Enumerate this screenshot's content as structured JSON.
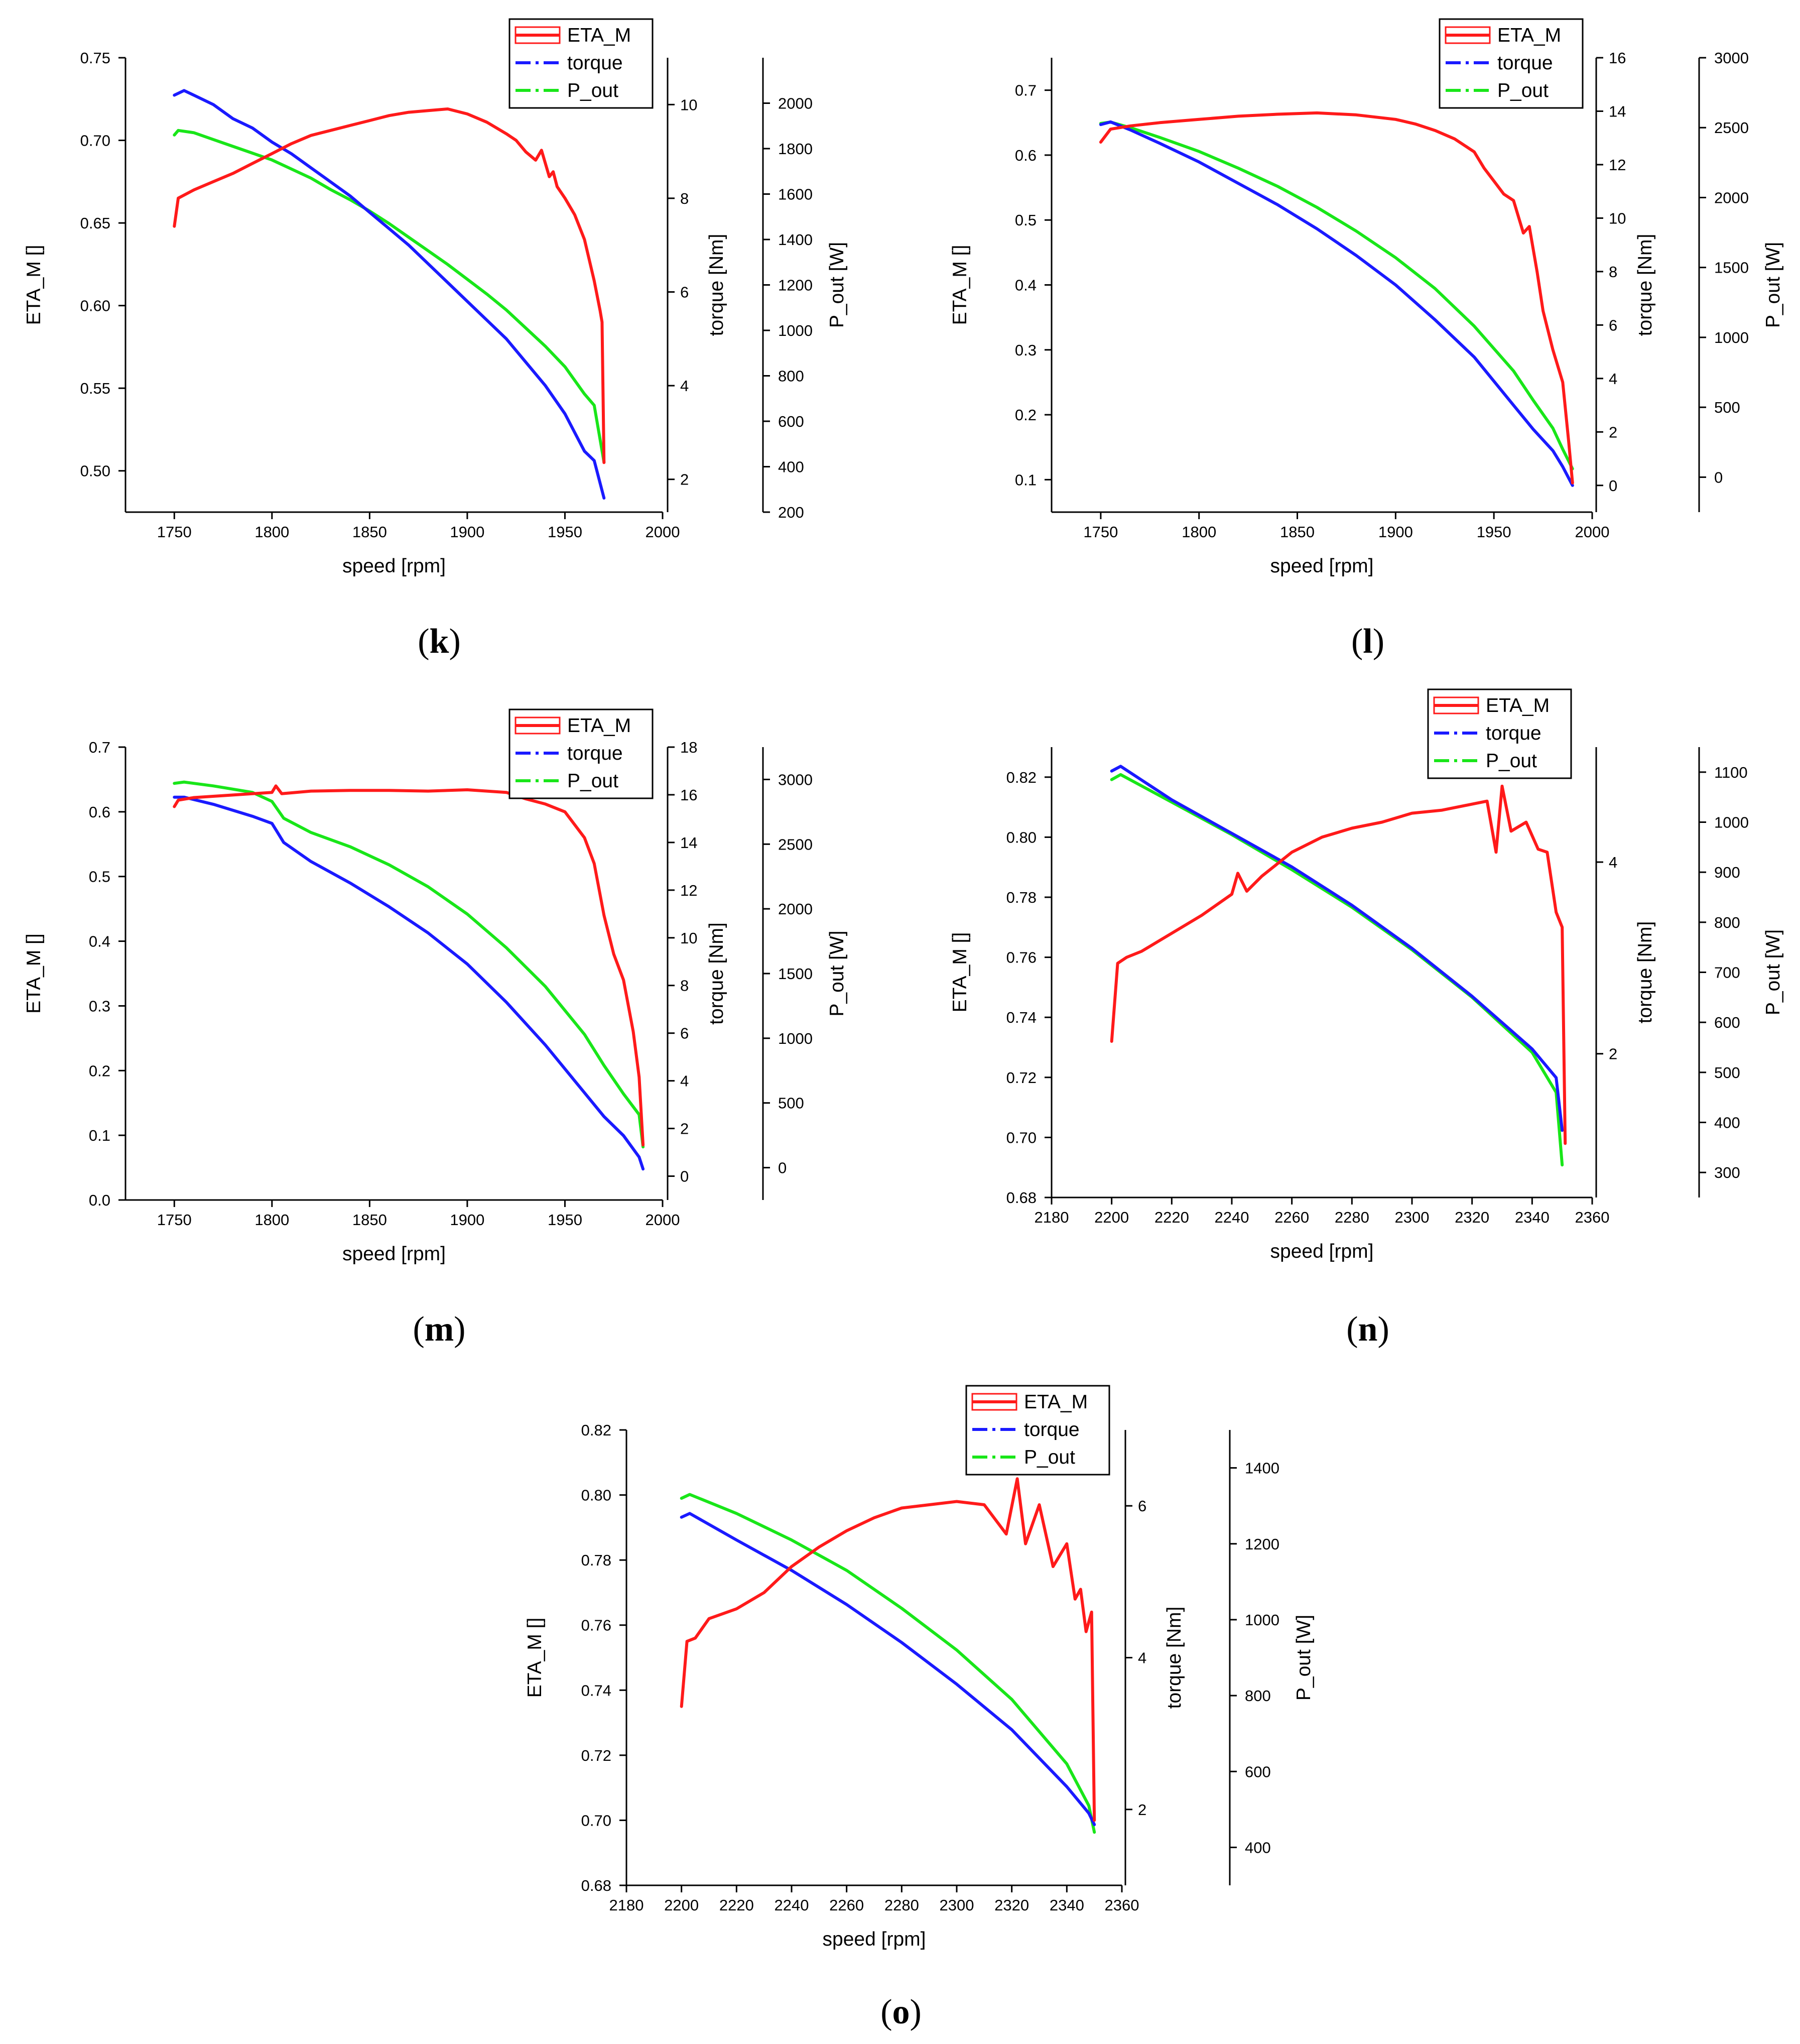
{
  "figure": {
    "colors": {
      "eta": "#ff1a1a",
      "torque": "#1a1aff",
      "p_out": "#19e619",
      "axis": "#000000"
    }
  },
  "chart_data": [
    {
      "panel": "k",
      "type": "line",
      "caption": "(k)",
      "xlabel": "speed [rpm]",
      "xlim": [
        1725,
        2000
      ],
      "xticks": [
        1750,
        1800,
        1850,
        1900,
        1950,
        2000
      ],
      "axes": {
        "eta": {
          "label": "ETA_M []",
          "lim": [
            0.475,
            0.75
          ],
          "ticks": [
            0.5,
            0.55,
            0.6,
            0.65,
            0.7,
            0.75
          ],
          "decimals": 2
        },
        "torque": {
          "label": "torque [Nm]",
          "lim": [
            1.3,
            11
          ],
          "ticks": [
            2,
            4,
            6,
            8,
            10
          ],
          "decimals": 0
        },
        "p_out": {
          "label": "P_out [W]",
          "lim": [
            200,
            2200
          ],
          "ticks": [
            200,
            400,
            600,
            800,
            1000,
            1200,
            1400,
            1600,
            1800,
            2000
          ],
          "decimals": 0
        }
      },
      "legend": [
        "ETA_M",
        "torque",
        "P_out"
      ],
      "series": [
        {
          "name": "ETA_M",
          "axis": "eta",
          "x": [
            1750,
            1752,
            1760,
            1770,
            1780,
            1790,
            1800,
            1810,
            1820,
            1830,
            1840,
            1850,
            1860,
            1870,
            1880,
            1890,
            1900,
            1910,
            1920,
            1925,
            1930,
            1935,
            1938,
            1942,
            1944,
            1946,
            1950,
            1955,
            1960,
            1965,
            1968,
            1969,
            1970
          ],
          "y": [
            0.648,
            0.665,
            0.67,
            0.675,
            0.68,
            0.686,
            0.692,
            0.698,
            0.703,
            0.706,
            0.709,
            0.712,
            0.715,
            0.717,
            0.718,
            0.719,
            0.716,
            0.711,
            0.704,
            0.7,
            0.693,
            0.688,
            0.694,
            0.678,
            0.681,
            0.672,
            0.665,
            0.655,
            0.64,
            0.615,
            0.597,
            0.59,
            0.505
          ]
        },
        {
          "name": "torque",
          "axis": "torque",
          "x": [
            1750,
            1755,
            1760,
            1770,
            1780,
            1790,
            1800,
            1810,
            1820,
            1830,
            1840,
            1850,
            1860,
            1870,
            1880,
            1890,
            1900,
            1910,
            1920,
            1930,
            1940,
            1950,
            1955,
            1960,
            1965,
            1970
          ],
          "y": [
            10.2,
            10.3,
            10.2,
            10.0,
            9.7,
            9.5,
            9.2,
            8.95,
            8.65,
            8.35,
            8.05,
            7.7,
            7.35,
            7.0,
            6.6,
            6.2,
            5.8,
            5.4,
            5.0,
            4.5,
            4.0,
            3.4,
            3.0,
            2.6,
            2.4,
            1.6
          ]
        },
        {
          "name": "P_out",
          "axis": "p_out",
          "x": [
            1750,
            1752,
            1760,
            1770,
            1780,
            1790,
            1800,
            1810,
            1820,
            1830,
            1840,
            1850,
            1860,
            1870,
            1880,
            1890,
            1900,
            1910,
            1920,
            1930,
            1940,
            1950,
            1955,
            1960,
            1965,
            1970
          ],
          "y": [
            1860,
            1880,
            1870,
            1840,
            1810,
            1780,
            1750,
            1710,
            1670,
            1620,
            1575,
            1525,
            1470,
            1410,
            1350,
            1290,
            1225,
            1160,
            1090,
            1010,
            930,
            840,
            780,
            720,
            670,
            420
          ]
        }
      ]
    },
    {
      "panel": "l",
      "type": "line",
      "caption": "(l)",
      "xlabel": "speed [rpm]",
      "xlim": [
        1725,
        2000
      ],
      "xticks": [
        1750,
        1800,
        1850,
        1900,
        1950,
        2000
      ],
      "axes": {
        "eta": {
          "label": "ETA_M []",
          "lim": [
            0.05,
            0.75
          ],
          "ticks": [
            0.1,
            0.2,
            0.3,
            0.4,
            0.5,
            0.6,
            0.7
          ],
          "decimals": 1
        },
        "torque": {
          "label": "torque [Nm]",
          "lim": [
            -1,
            16
          ],
          "ticks": [
            0,
            2,
            4,
            6,
            8,
            10,
            12,
            14,
            16
          ],
          "decimals": 0
        },
        "p_out": {
          "label": "P_out [W]",
          "lim": [
            -250,
            3000
          ],
          "ticks": [
            0,
            500,
            1000,
            1500,
            2000,
            2500,
            3000
          ],
          "decimals": 0
        }
      },
      "legend": [
        "ETA_M",
        "torque",
        "P_out"
      ],
      "series": [
        {
          "name": "ETA_M",
          "axis": "eta",
          "x": [
            1750,
            1755,
            1765,
            1780,
            1800,
            1820,
            1840,
            1860,
            1880,
            1900,
            1910,
            1920,
            1930,
            1940,
            1945,
            1950,
            1955,
            1960,
            1965,
            1968,
            1972,
            1975,
            1980,
            1985,
            1988,
            1990
          ],
          "y": [
            0.62,
            0.64,
            0.645,
            0.65,
            0.655,
            0.66,
            0.663,
            0.665,
            0.662,
            0.655,
            0.648,
            0.638,
            0.625,
            0.605,
            0.58,
            0.56,
            0.54,
            0.53,
            0.48,
            0.49,
            0.42,
            0.36,
            0.3,
            0.25,
            0.16,
            0.095
          ]
        },
        {
          "name": "torque",
          "axis": "torque",
          "x": [
            1750,
            1755,
            1765,
            1780,
            1800,
            1820,
            1840,
            1860,
            1880,
            1900,
            1920,
            1940,
            1960,
            1970,
            1980,
            1985,
            1990
          ],
          "y": [
            13.5,
            13.6,
            13.3,
            12.8,
            12.1,
            11.3,
            10.5,
            9.6,
            8.6,
            7.5,
            6.2,
            4.8,
            3.0,
            2.1,
            1.3,
            0.7,
            0.0
          ]
        },
        {
          "name": "P_out",
          "axis": "p_out",
          "x": [
            1750,
            1755,
            1765,
            1780,
            1800,
            1820,
            1840,
            1860,
            1880,
            1900,
            1920,
            1940,
            1960,
            1970,
            1980,
            1985,
            1990
          ],
          "y": [
            2530,
            2540,
            2500,
            2430,
            2330,
            2210,
            2080,
            1930,
            1760,
            1570,
            1350,
            1080,
            760,
            550,
            350,
            200,
            60
          ]
        }
      ]
    },
    {
      "panel": "m",
      "type": "line",
      "caption": "(m)",
      "xlabel": "speed [rpm]",
      "xlim": [
        1725,
        2000
      ],
      "xticks": [
        1750,
        1800,
        1850,
        1900,
        1950,
        2000
      ],
      "axes": {
        "eta": {
          "label": "ETA_M []",
          "lim": [
            0.0,
            0.7
          ],
          "ticks": [
            0.0,
            0.1,
            0.2,
            0.3,
            0.4,
            0.5,
            0.6,
            0.7
          ],
          "decimals": 1
        },
        "torque": {
          "label": "torque [Nm]",
          "lim": [
            -1,
            18
          ],
          "ticks": [
            0,
            2,
            4,
            6,
            8,
            10,
            12,
            14,
            16,
            18
          ],
          "decimals": 0
        },
        "p_out": {
          "label": "P_out [W]",
          "lim": [
            -250,
            3250
          ],
          "ticks": [
            0,
            500,
            1000,
            1500,
            2000,
            2500,
            3000
          ],
          "decimals": 0
        }
      },
      "legend": [
        "ETA_M",
        "torque",
        "P_out"
      ],
      "series": [
        {
          "name": "ETA_M",
          "axis": "eta",
          "x": [
            1750,
            1752,
            1760,
            1780,
            1800,
            1802,
            1805,
            1820,
            1840,
            1860,
            1880,
            1900,
            1920,
            1930,
            1940,
            1950,
            1955,
            1960,
            1965,
            1970,
            1975,
            1980,
            1985,
            1988,
            1990
          ],
          "y": [
            0.608,
            0.618,
            0.622,
            0.626,
            0.63,
            0.64,
            0.628,
            0.632,
            0.633,
            0.633,
            0.632,
            0.634,
            0.63,
            0.62,
            0.612,
            0.6,
            0.58,
            0.56,
            0.52,
            0.44,
            0.38,
            0.34,
            0.26,
            0.19,
            0.085
          ]
        },
        {
          "name": "torque",
          "axis": "torque",
          "x": [
            1750,
            1755,
            1770,
            1790,
            1800,
            1806,
            1820,
            1840,
            1860,
            1880,
            1900,
            1920,
            1940,
            1960,
            1970,
            1980,
            1988,
            1990
          ],
          "y": [
            15.9,
            15.9,
            15.6,
            15.1,
            14.8,
            14.0,
            13.2,
            12.3,
            11.3,
            10.2,
            8.9,
            7.3,
            5.5,
            3.5,
            2.5,
            1.7,
            0.8,
            0.3
          ]
        },
        {
          "name": "P_out",
          "axis": "p_out",
          "x": [
            1750,
            1755,
            1770,
            1790,
            1800,
            1806,
            1820,
            1840,
            1860,
            1880,
            1900,
            1920,
            1940,
            1960,
            1970,
            1980,
            1988,
            1990
          ],
          "y": [
            2970,
            2980,
            2950,
            2900,
            2830,
            2700,
            2590,
            2480,
            2340,
            2170,
            1960,
            1700,
            1400,
            1030,
            790,
            570,
            410,
            160
          ]
        }
      ]
    },
    {
      "panel": "n",
      "type": "line",
      "caption": "(n)",
      "xlabel": "speed [rpm]",
      "xlim": [
        2180,
        2360
      ],
      "xticks": [
        2180,
        2200,
        2220,
        2240,
        2260,
        2280,
        2300,
        2320,
        2340,
        2360
      ],
      "axes": {
        "eta": {
          "label": "ETA_M []",
          "lim": [
            0.68,
            0.83
          ],
          "ticks": [
            0.68,
            0.7,
            0.72,
            0.74,
            0.76,
            0.78,
            0.8,
            0.82
          ],
          "decimals": 2
        },
        "torque": {
          "label": "torque [Nm]",
          "lim": [
            0.5,
            5.2
          ],
          "ticks": [
            2,
            4
          ],
          "decimals": 0
        },
        "p_out": {
          "label": "P_out [W]",
          "lim": [
            250,
            1150
          ],
          "ticks": [
            300,
            400,
            500,
            600,
            700,
            800,
            900,
            1000,
            1100
          ],
          "decimals": 0
        }
      },
      "legend": [
        "ETA_M",
        "torque",
        "P_out"
      ],
      "series": [
        {
          "name": "ETA_M",
          "axis": "eta",
          "x": [
            2200,
            2202,
            2205,
            2210,
            2215,
            2220,
            2230,
            2240,
            2242,
            2245,
            2250,
            2255,
            2260,
            2270,
            2280,
            2290,
            2300,
            2310,
            2320,
            2325,
            2328,
            2330,
            2333,
            2338,
            2342,
            2345,
            2348,
            2350,
            2351
          ],
          "y": [
            0.732,
            0.758,
            0.76,
            0.762,
            0.765,
            0.768,
            0.774,
            0.781,
            0.788,
            0.782,
            0.787,
            0.791,
            0.795,
            0.8,
            0.803,
            0.805,
            0.808,
            0.809,
            0.811,
            0.812,
            0.795,
            0.817,
            0.802,
            0.805,
            0.796,
            0.795,
            0.775,
            0.77,
            0.698
          ]
        },
        {
          "name": "torque",
          "axis": "torque",
          "x": [
            2200,
            2203,
            2220,
            2240,
            2260,
            2280,
            2300,
            2320,
            2340,
            2348,
            2350
          ],
          "y": [
            4.95,
            5.0,
            4.65,
            4.3,
            3.95,
            3.55,
            3.1,
            2.6,
            2.05,
            1.75,
            1.2
          ]
        },
        {
          "name": "P_out",
          "axis": "p_out",
          "x": [
            2200,
            2203,
            2220,
            2240,
            2260,
            2280,
            2300,
            2320,
            2340,
            2348,
            2350
          ],
          "y": [
            1085,
            1095,
            1040,
            975,
            905,
            830,
            745,
            650,
            540,
            460,
            315
          ]
        }
      ]
    },
    {
      "panel": "o",
      "type": "line",
      "caption": "(o)",
      "xlabel": "speed [rpm]",
      "xlim": [
        2180,
        2360
      ],
      "xticks": [
        2180,
        2200,
        2220,
        2240,
        2260,
        2280,
        2300,
        2320,
        2340,
        2360
      ],
      "axes": {
        "eta": {
          "label": "ETA_M []",
          "lim": [
            0.68,
            0.82
          ],
          "ticks": [
            0.68,
            0.7,
            0.72,
            0.74,
            0.76,
            0.78,
            0.8,
            0.82
          ],
          "decimals": 2
        },
        "torque": {
          "label": "torque [Nm]",
          "lim": [
            1.0,
            7.0
          ],
          "ticks": [
            2,
            4,
            6
          ],
          "decimals": 0
        },
        "p_out": {
          "label": "P_out [W]",
          "lim": [
            300,
            1500
          ],
          "ticks": [
            400,
            600,
            800,
            1000,
            1200,
            1400
          ],
          "decimals": 0
        }
      },
      "legend": [
        "ETA_M",
        "torque",
        "P_out"
      ],
      "series": [
        {
          "name": "ETA_M",
          "axis": "eta",
          "x": [
            2200,
            2202,
            2205,
            2210,
            2220,
            2230,
            2240,
            2250,
            2260,
            2270,
            2280,
            2290,
            2300,
            2310,
            2318,
            2322,
            2325,
            2330,
            2335,
            2340,
            2343,
            2345,
            2347,
            2349,
            2350
          ],
          "y": [
            0.735,
            0.755,
            0.756,
            0.762,
            0.765,
            0.77,
            0.778,
            0.784,
            0.789,
            0.793,
            0.796,
            0.797,
            0.798,
            0.797,
            0.788,
            0.805,
            0.785,
            0.797,
            0.778,
            0.785,
            0.768,
            0.771,
            0.758,
            0.764,
            0.7
          ]
        },
        {
          "name": "torque",
          "axis": "torque",
          "x": [
            2200,
            2203,
            2220,
            2240,
            2260,
            2280,
            2300,
            2320,
            2340,
            2348,
            2350
          ],
          "y": [
            5.85,
            5.9,
            5.55,
            5.15,
            4.7,
            4.2,
            3.65,
            3.05,
            2.3,
            1.95,
            1.8
          ]
        },
        {
          "name": "P_out",
          "axis": "p_out",
          "x": [
            2200,
            2203,
            2220,
            2240,
            2260,
            2280,
            2300,
            2320,
            2340,
            2348,
            2350
          ],
          "y": [
            1320,
            1330,
            1280,
            1210,
            1130,
            1030,
            920,
            790,
            620,
            510,
            440
          ]
        }
      ]
    }
  ]
}
